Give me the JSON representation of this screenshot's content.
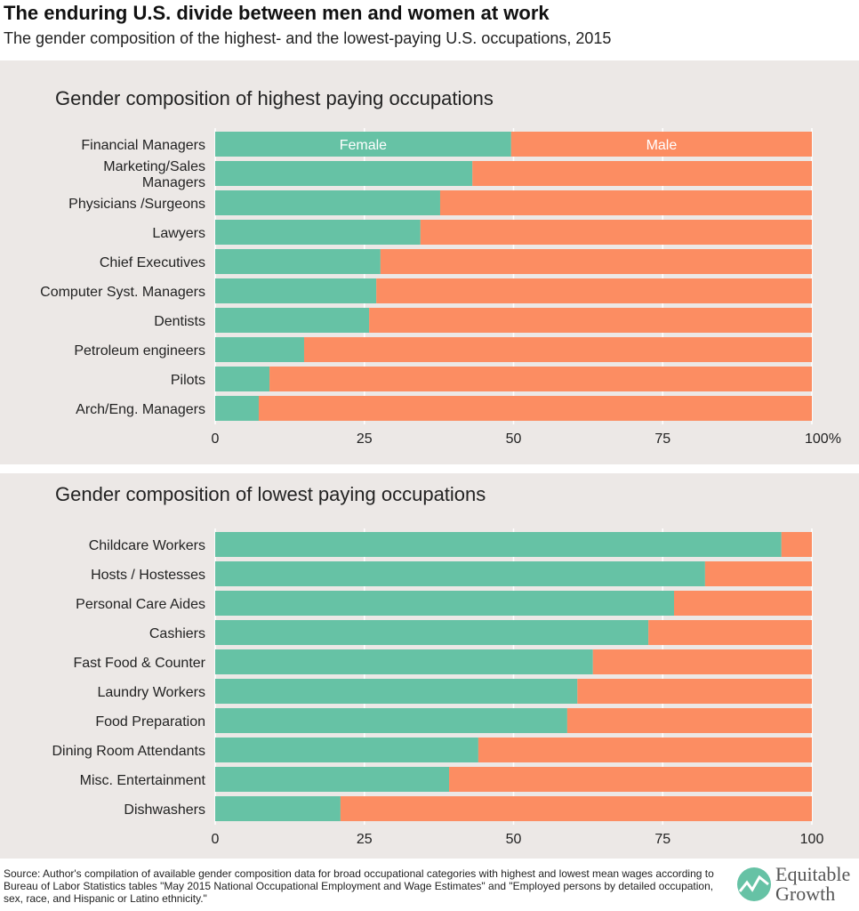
{
  "title": "The enduring U.S. divide between men and women at work",
  "subtitle": "The gender composition of the highest- and the lowest-paying U.S. occupations, 2015",
  "source": "Source: Author's compilation of available gender composition data for broad occupational categories with highest and lowest mean wages according to Bureau of Labor Statistics tables \"May 2015 National Occupational Employment and Wage Estimates\" and \"Employed persons by detailed occupation, sex, race, and Hispanic or Latino ethnicity.\"",
  "logo": {
    "line1": "Equitable",
    "line2": "Growth"
  },
  "colors": {
    "female": "#66c2a5",
    "male": "#fc8d62",
    "panel": "#ece8e6"
  },
  "chart_data": [
    {
      "type": "bar",
      "orientation": "horizontal",
      "stacked": true,
      "title": "Gender composition of highest paying occupations",
      "categories": [
        "Financial Managers",
        "Marketing/Sales Managers",
        "Physicians /Surgeons",
        "Lawyers",
        "Chief Executives",
        "Computer Syst. Managers",
        "Dentists",
        "Petroleum engineers",
        "Pilots",
        "Arch/Eng. Managers"
      ],
      "series": [
        {
          "name": "Female",
          "values": [
            49.6,
            43.1,
            37.7,
            34.4,
            27.7,
            27.0,
            25.8,
            14.9,
            9.1,
            7.3
          ]
        },
        {
          "name": "Male",
          "values": [
            50.4,
            56.9,
            62.3,
            65.6,
            72.3,
            73.0,
            74.2,
            85.1,
            90.9,
            92.7
          ]
        }
      ],
      "xlim": [
        0,
        100
      ],
      "xticks": [
        "0",
        "25",
        "50",
        "75",
        "100%"
      ],
      "grid": true,
      "legend": "inline-first-bar"
    },
    {
      "type": "bar",
      "orientation": "horizontal",
      "stacked": true,
      "title": "Gender composition of lowest paying occupations",
      "categories": [
        "Childcare Workers",
        "Hosts / Hostesses",
        "Personal Care Aides",
        "Cashiers",
        "Fast Food & Counter",
        "Laundry Workers",
        "Food Preparation",
        "Dining Room Attendants",
        "Misc. Entertainment",
        "Dishwashers"
      ],
      "series": [
        {
          "name": "Female",
          "values": [
            94.9,
            82.1,
            76.9,
            72.6,
            63.3,
            60.7,
            59.0,
            44.1,
            39.2,
            21.0
          ]
        },
        {
          "name": "Male",
          "values": [
            5.1,
            17.9,
            23.1,
            27.4,
            36.7,
            39.3,
            41.0,
            55.9,
            60.8,
            79.0
          ]
        }
      ],
      "xlim": [
        0,
        100
      ],
      "xticks": [
        "0",
        "25",
        "50",
        "75",
        "100"
      ],
      "grid": true
    }
  ]
}
